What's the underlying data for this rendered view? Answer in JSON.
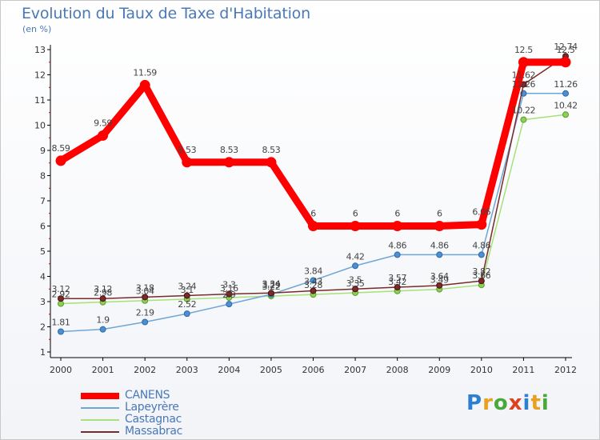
{
  "title": "Evolution du Taux de Taxe d'Habitation",
  "unit": "(en %)",
  "logo": {
    "letters": [
      "P",
      "r",
      "o",
      "x",
      "i",
      "t",
      "i"
    ],
    "colors": [
      "#2f7fd0",
      "#e8a020",
      "#48a838",
      "#e04020",
      "#2f7fd0",
      "#e8a020",
      "#48a838"
    ]
  },
  "chart_data": {
    "type": "line",
    "x": [
      2000,
      2001,
      2002,
      2003,
      2004,
      2005,
      2006,
      2007,
      2008,
      2009,
      2010,
      2011,
      2012
    ],
    "ylim": [
      1,
      13
    ],
    "yticks": [
      1,
      2,
      3,
      4,
      5,
      6,
      7,
      8,
      9,
      10,
      11,
      12,
      13
    ],
    "grid": false,
    "legend_position": "bottom-left",
    "series": [
      {
        "name": "CANENS",
        "color": "#ff0000",
        "values": [
          8.59,
          9.59,
          11.59,
          8.53,
          8.53,
          8.53,
          6,
          6,
          6,
          6,
          6.06,
          12.5,
          12.5
        ],
        "labels": [
          "8.59",
          "9.59",
          "11.59",
          "8.53",
          "8.53",
          "8.53",
          "6",
          "6",
          "6",
          "6",
          "6.06",
          "12.5",
          "12.5"
        ]
      },
      {
        "name": "Lapeyrère",
        "color": "#6fa6d6",
        "values": [
          1.81,
          1.9,
          2.19,
          2.52,
          2.9,
          3.29,
          3.84,
          4.42,
          4.86,
          4.86,
          4.86,
          11.26,
          11.26
        ],
        "labels": [
          "1.81",
          "1.9",
          "2.19",
          "2.52",
          "2.9",
          "3.29",
          "3.84",
          "4.42",
          "4.86",
          "4.86",
          "4.86",
          "11.26",
          "11.26"
        ]
      },
      {
        "name": "Castagnac",
        "color": "#a8e07a",
        "values": [
          2.92,
          2.98,
          3.04,
          3.1,
          3.16,
          3.22,
          3.28,
          3.35,
          3.42,
          3.49,
          3.66,
          10.22,
          10.42
        ],
        "labels": [
          "2.92",
          "2.98",
          "3.04",
          "3.1",
          "3.16",
          "3.22",
          "3.28",
          "3.35",
          "3.42",
          "3.49",
          "3.66",
          "10.22",
          "10.42"
        ]
      },
      {
        "name": "Massabrac",
        "color": "#7a2a2a",
        "values": [
          3.12,
          3.12,
          3.18,
          3.24,
          3.3,
          3.34,
          3.43,
          3.5,
          3.57,
          3.64,
          3.82,
          11.62,
          12.74
        ],
        "labels": [
          "3.12",
          "3.12",
          "3.18",
          "3.24",
          "3.3",
          "3.34",
          "3.43",
          "3.5",
          "3.57",
          "3.64",
          "3.82",
          "11.62",
          "12.74"
        ]
      }
    ]
  }
}
